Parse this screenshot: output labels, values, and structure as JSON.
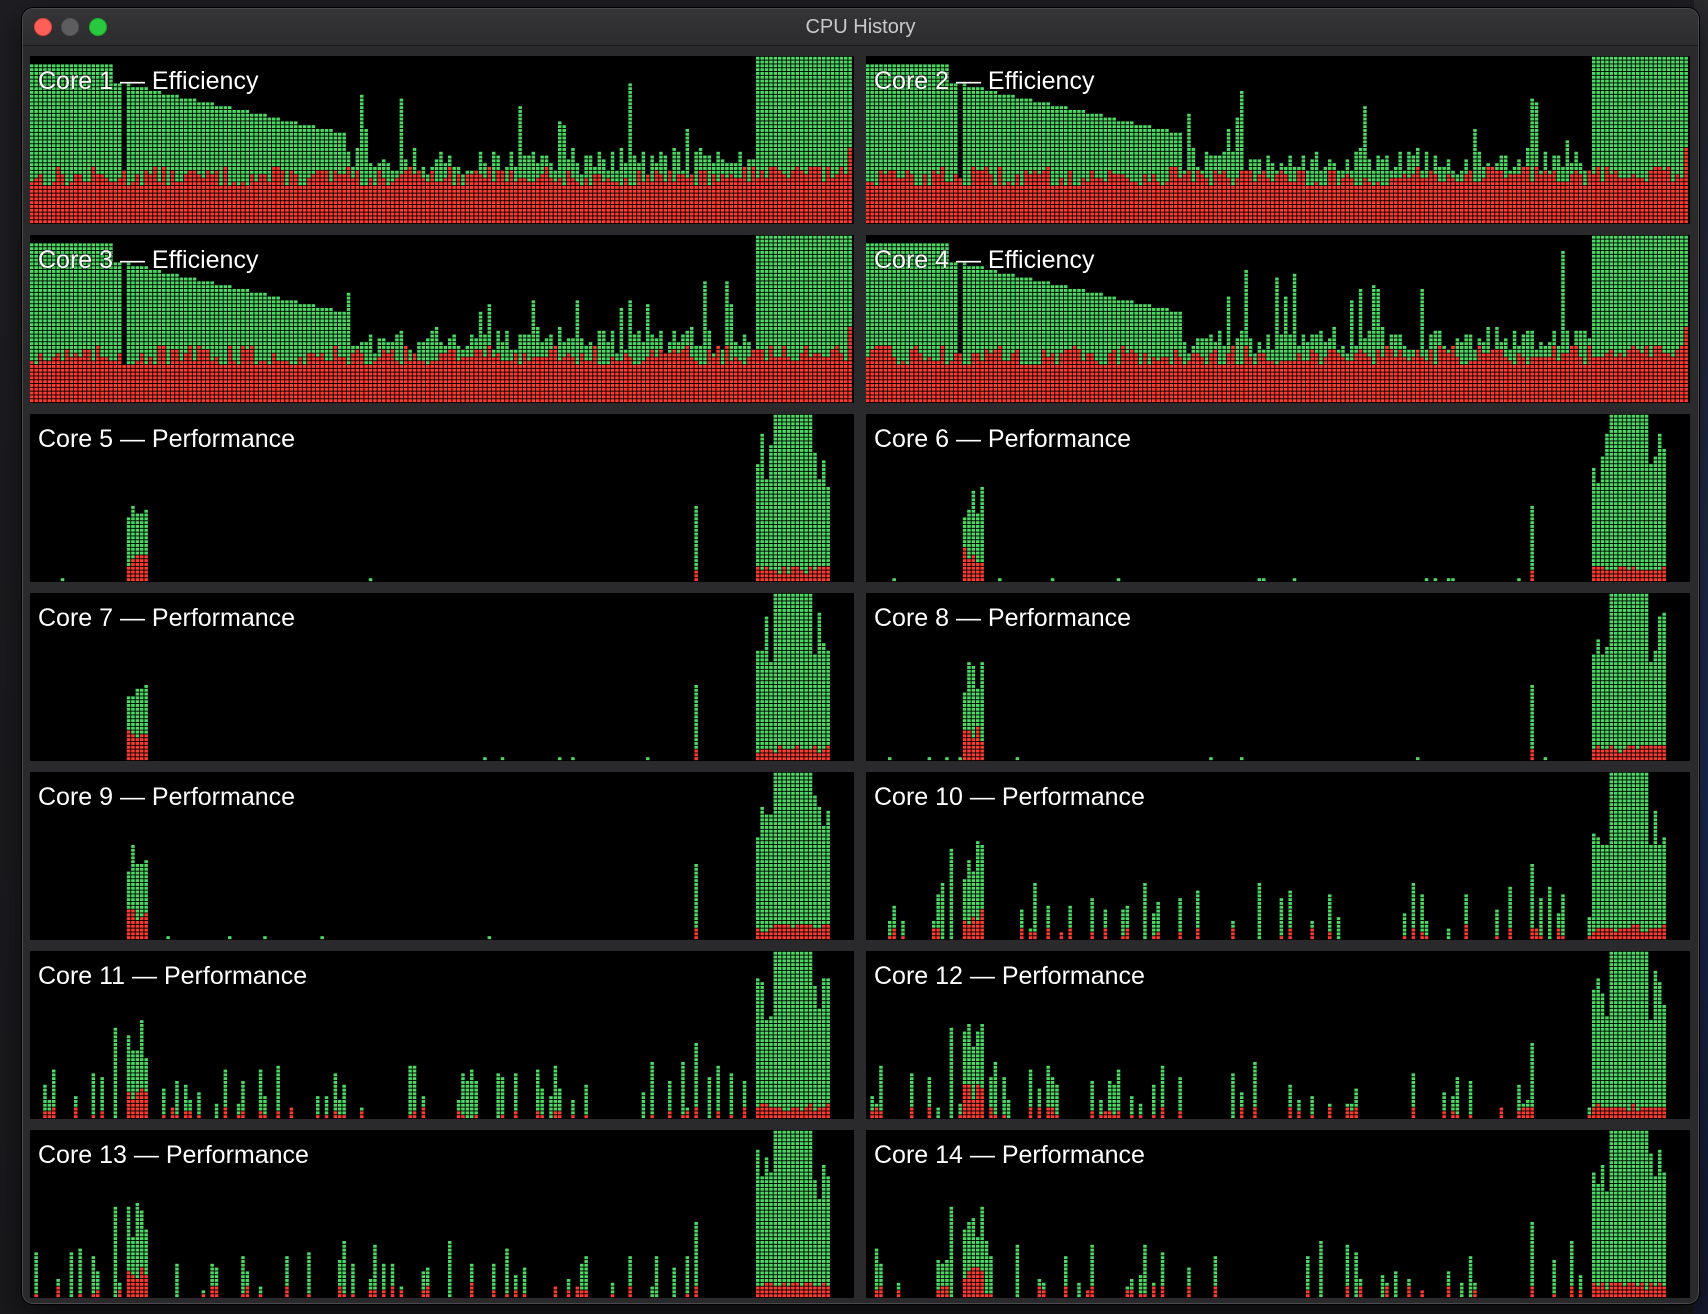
{
  "window": {
    "title": "CPU History"
  },
  "colors": {
    "user": "#4cd964",
    "system": "#ff3b30",
    "background": "#000000"
  },
  "cores": [
    {
      "label": "Core 1 — Efficiency",
      "type": "efficiency"
    },
    {
      "label": "Core 2 — Efficiency",
      "type": "efficiency"
    },
    {
      "label": "Core 3 — Efficiency",
      "type": "efficiency"
    },
    {
      "label": "Core 4 — Efficiency",
      "type": "efficiency"
    },
    {
      "label": "Core 5 — Performance",
      "type": "performance"
    },
    {
      "label": "Core 6 — Performance",
      "type": "performance"
    },
    {
      "label": "Core 7 — Performance",
      "type": "performance"
    },
    {
      "label": "Core 8 — Performance",
      "type": "performance"
    },
    {
      "label": "Core 9 — Performance",
      "type": "performance"
    },
    {
      "label": "Core 10 — Performance",
      "type": "performance"
    },
    {
      "label": "Core 11 — Performance",
      "type": "performance"
    },
    {
      "label": "Core 12 — Performance",
      "type": "performance"
    },
    {
      "label": "Core 13 — Performance",
      "type": "performance"
    },
    {
      "label": "Core 14 — Performance",
      "type": "performance"
    }
  ]
}
